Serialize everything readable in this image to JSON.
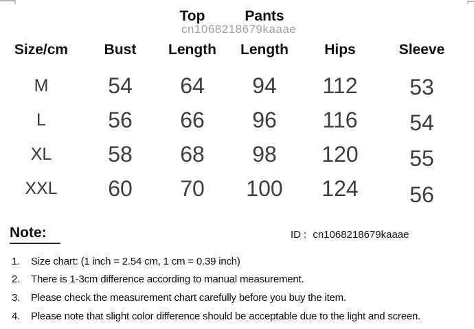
{
  "watermark": "cn1068218679kaaae",
  "colors": {
    "heading_text": "#0f0f0f",
    "data_text": "#3e3e3e",
    "watermark_text": "#a2a2a2"
  },
  "size_chart": {
    "columns": [
      {
        "line1": "",
        "line2": "Size/cm"
      },
      {
        "line1": "",
        "line2": "Bust"
      },
      {
        "line1": "Top",
        "line2": "Length"
      },
      {
        "line1": "Pants",
        "line2": "Length"
      },
      {
        "line1": "",
        "line2": "Hips"
      },
      {
        "line1": "",
        "line2": "Sleeve"
      }
    ]
  },
  "chart_data": {
    "type": "table",
    "columns": [
      "Size/cm",
      "Bust",
      "Top Length",
      "Pants Length",
      "Hips",
      "Sleeve"
    ],
    "rows": [
      [
        "M",
        54,
        64,
        94,
        112,
        53
      ],
      [
        "L",
        56,
        66,
        96,
        116,
        54
      ],
      [
        "XL",
        58,
        68,
        98,
        120,
        55
      ],
      [
        "XXL",
        60,
        70,
        100,
        124,
        56
      ]
    ]
  },
  "note": {
    "heading": "Note:",
    "id_label": "ID :",
    "id_value": "cn1068218679kaaae",
    "items": [
      {
        "num": "1.",
        "text": "Size chart: (1 inch = 2.54 cm, 1 cm = 0.39 inch)"
      },
      {
        "num": "2.",
        "text": "There is 1-3cm difference according to manual measurement."
      },
      {
        "num": "3.",
        "text": "Please check the measurement chart carefully before you buy the item."
      },
      {
        "num": "4.",
        "text": "Please note that slight color difference should be acceptable due to the light and screen."
      }
    ]
  }
}
